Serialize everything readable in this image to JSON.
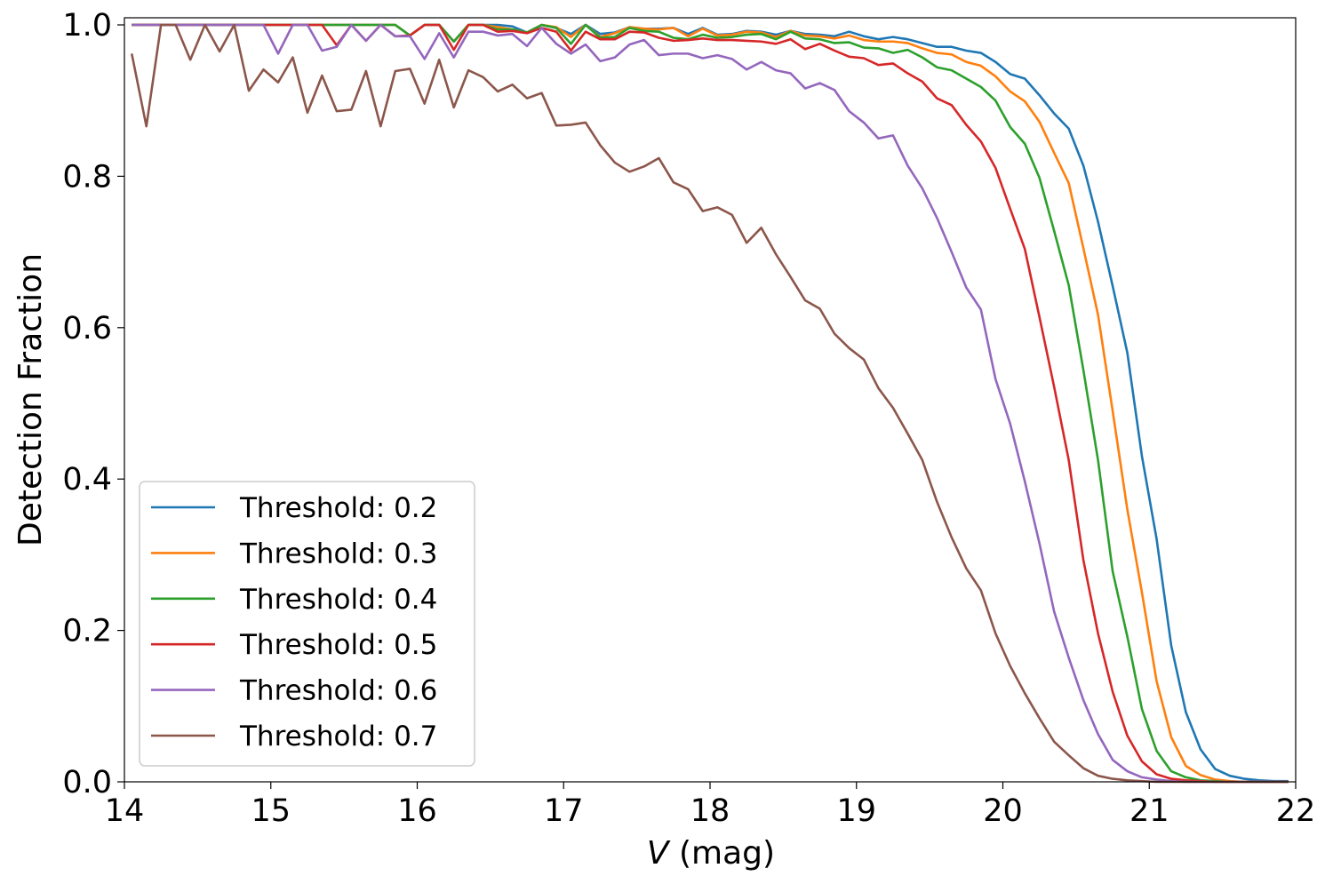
{
  "chart_data": {
    "type": "line",
    "title": "",
    "xlabel_italic": "V",
    "xlabel_rest": " (mag)",
    "xlabel": "V (mag)",
    "ylabel": "Detection Fraction",
    "xlim": [
      14,
      22
    ],
    "ylim": [
      0,
      1.0094
    ],
    "grid": false,
    "legend_position": "lower-left",
    "xticks": [
      14,
      15,
      16,
      17,
      18,
      19,
      20,
      21,
      22
    ],
    "xtick_labels": [
      "14",
      "15",
      "16",
      "17",
      "18",
      "19",
      "20",
      "21",
      "22"
    ],
    "yticks": [
      0.0,
      0.2,
      0.4,
      0.6,
      0.8,
      1.0
    ],
    "ytick_labels": [
      "0.0",
      "0.2",
      "0.4",
      "0.6",
      "0.8",
      "1.0"
    ],
    "x": [
      14.05,
      14.15,
      14.25,
      14.35,
      14.45,
      14.55,
      14.65,
      14.75,
      14.85,
      14.95,
      15.05,
      15.15,
      15.25,
      15.35,
      15.45,
      15.55,
      15.65,
      15.75,
      15.85,
      15.95,
      16.05,
      16.15,
      16.25,
      16.35,
      16.45,
      16.55,
      16.65,
      16.75,
      16.85,
      16.95,
      17.05,
      17.15,
      17.25,
      17.35,
      17.45,
      17.55,
      17.65,
      17.75,
      17.85,
      17.95,
      18.05,
      18.15,
      18.25,
      18.35,
      18.45,
      18.55,
      18.65,
      18.75,
      18.85,
      18.95,
      19.05,
      19.15,
      19.25,
      19.35,
      19.45,
      19.55,
      19.65,
      19.75,
      19.85,
      19.95,
      20.05,
      20.15,
      20.25,
      20.35,
      20.45,
      20.55,
      20.65,
      20.75,
      20.85,
      20.95,
      21.05,
      21.15,
      21.25,
      21.35,
      21.45,
      21.55,
      21.65,
      21.75,
      21.85,
      21.95
    ],
    "series": [
      {
        "name": "Threshold: 0.2",
        "color": "#1f77b4",
        "values": [
          1,
          1,
          1,
          1,
          1,
          1,
          1,
          1,
          1,
          1,
          1,
          1,
          1,
          1,
          1,
          1,
          1,
          1,
          1,
          0.986,
          1,
          1,
          0.978,
          1,
          1,
          1,
          0.998,
          0.99,
          1,
          0.996,
          0.988,
          1,
          0.988,
          0.99,
          0.997,
          0.995,
          0.995,
          0.996,
          0.988,
          0.996,
          0.987,
          0.988,
          0.992,
          0.991,
          0.987,
          0.992,
          0.988,
          0.987,
          0.985,
          0.991,
          0.985,
          0.981,
          0.984,
          0.981,
          0.976,
          0.971,
          0.971,
          0.966,
          0.963,
          0.951,
          0.935,
          0.929,
          0.907,
          0.883,
          0.863,
          0.814,
          0.74,
          0.655,
          0.567,
          0.43,
          0.321,
          0.18,
          0.092,
          0.043,
          0.017,
          0.008,
          0.004,
          0.002,
          0.001,
          0.001
        ]
      },
      {
        "name": "Threshold: 0.3",
        "color": "#ff7f0e",
        "values": [
          1,
          1,
          1,
          1,
          1,
          1,
          1,
          1,
          1,
          1,
          1,
          1,
          1,
          1,
          1,
          1,
          1,
          1,
          1,
          0.986,
          1,
          1,
          0.978,
          1,
          1,
          0.997,
          0.994,
          0.99,
          1,
          0.997,
          0.984,
          1,
          0.984,
          0.989,
          0.997,
          0.995,
          0.994,
          0.996,
          0.985,
          0.995,
          0.986,
          0.987,
          0.991,
          0.99,
          0.984,
          0.992,
          0.986,
          0.985,
          0.982,
          0.986,
          0.98,
          0.978,
          0.978,
          0.976,
          0.969,
          0.963,
          0.961,
          0.951,
          0.946,
          0.932,
          0.912,
          0.899,
          0.872,
          0.831,
          0.791,
          0.705,
          0.617,
          0.49,
          0.36,
          0.25,
          0.133,
          0.059,
          0.021,
          0.009,
          0.003,
          0.001,
          0,
          0,
          0,
          0
        ]
      },
      {
        "name": "Threshold: 0.4",
        "color": "#2ca02c",
        "values": [
          1,
          1,
          1,
          1,
          1,
          1,
          1,
          1,
          1,
          1,
          1,
          1,
          1,
          1,
          1,
          1,
          1,
          1,
          1,
          0.986,
          1,
          1,
          0.978,
          1,
          1,
          0.994,
          0.994,
          0.99,
          1,
          0.996,
          0.975,
          1,
          0.983,
          0.984,
          0.996,
          0.992,
          0.991,
          0.983,
          0.981,
          0.987,
          0.983,
          0.984,
          0.987,
          0.988,
          0.981,
          0.991,
          0.982,
          0.981,
          0.976,
          0.977,
          0.97,
          0.969,
          0.963,
          0.967,
          0.957,
          0.944,
          0.94,
          0.929,
          0.918,
          0.9,
          0.865,
          0.843,
          0.798,
          0.728,
          0.656,
          0.544,
          0.425,
          0.278,
          0.192,
          0.096,
          0.041,
          0.014,
          0.006,
          0.002,
          0.001,
          0,
          0,
          0,
          0,
          0
        ]
      },
      {
        "name": "Threshold: 0.5",
        "color": "#d62728",
        "values": [
          1,
          1,
          1,
          1,
          1,
          1,
          1,
          1,
          1,
          1,
          1,
          1,
          1,
          1,
          0.973,
          1,
          0.979,
          1,
          0.985,
          0.986,
          1,
          1,
          0.967,
          1,
          1,
          0.991,
          0.992,
          0.989,
          0.996,
          0.991,
          0.966,
          0.991,
          0.981,
          0.981,
          0.991,
          0.99,
          0.983,
          0.979,
          0.98,
          0.982,
          0.98,
          0.98,
          0.979,
          0.978,
          0.975,
          0.981,
          0.968,
          0.975,
          0.966,
          0.958,
          0.956,
          0.947,
          0.949,
          0.936,
          0.925,
          0.903,
          0.894,
          0.868,
          0.846,
          0.811,
          0.757,
          0.704,
          0.614,
          0.522,
          0.425,
          0.293,
          0.196,
          0.119,
          0.061,
          0.027,
          0.01,
          0.004,
          0.002,
          0.001,
          0,
          0,
          0,
          0,
          0,
          0
        ]
      },
      {
        "name": "Threshold: 0.6",
        "color": "#9467bd",
        "values": [
          1,
          1,
          1,
          1,
          1,
          1,
          1,
          1,
          1,
          1,
          0.962,
          1,
          1,
          0.966,
          0.971,
          1,
          0.979,
          1,
          0.985,
          0.985,
          0.955,
          0.989,
          0.957,
          0.991,
          0.991,
          0.986,
          0.988,
          0.972,
          0.996,
          0.975,
          0.962,
          0.974,
          0.952,
          0.957,
          0.974,
          0.98,
          0.96,
          0.962,
          0.962,
          0.956,
          0.96,
          0.955,
          0.941,
          0.951,
          0.94,
          0.936,
          0.916,
          0.923,
          0.914,
          0.886,
          0.871,
          0.85,
          0.854,
          0.814,
          0.784,
          0.745,
          0.7,
          0.653,
          0.624,
          0.532,
          0.473,
          0.397,
          0.315,
          0.225,
          0.164,
          0.108,
          0.063,
          0.029,
          0.014,
          0.006,
          0.003,
          0.001,
          0,
          0,
          0,
          0,
          0,
          0,
          0,
          0
        ]
      },
      {
        "name": "Threshold: 0.7",
        "color": "#8c564b",
        "values": [
          0.962,
          0.866,
          1,
          1,
          0.954,
          1,
          0.965,
          1,
          0.913,
          0.941,
          0.924,
          0.957,
          0.884,
          0.933,
          0.886,
          0.888,
          0.939,
          0.866,
          0.939,
          0.942,
          0.896,
          0.954,
          0.891,
          0.94,
          0.931,
          0.912,
          0.921,
          0.903,
          0.91,
          0.867,
          0.868,
          0.871,
          0.841,
          0.818,
          0.806,
          0.813,
          0.824,
          0.792,
          0.783,
          0.754,
          0.759,
          0.749,
          0.712,
          0.732,
          0.697,
          0.667,
          0.636,
          0.625,
          0.592,
          0.573,
          0.558,
          0.52,
          0.494,
          0.46,
          0.425,
          0.37,
          0.323,
          0.282,
          0.253,
          0.196,
          0.153,
          0.117,
          0.084,
          0.053,
          0.035,
          0.018,
          0.008,
          0.004,
          0.002,
          0.001,
          0,
          0,
          0,
          0,
          0,
          0,
          0,
          0,
          0,
          0
        ]
      }
    ]
  }
}
